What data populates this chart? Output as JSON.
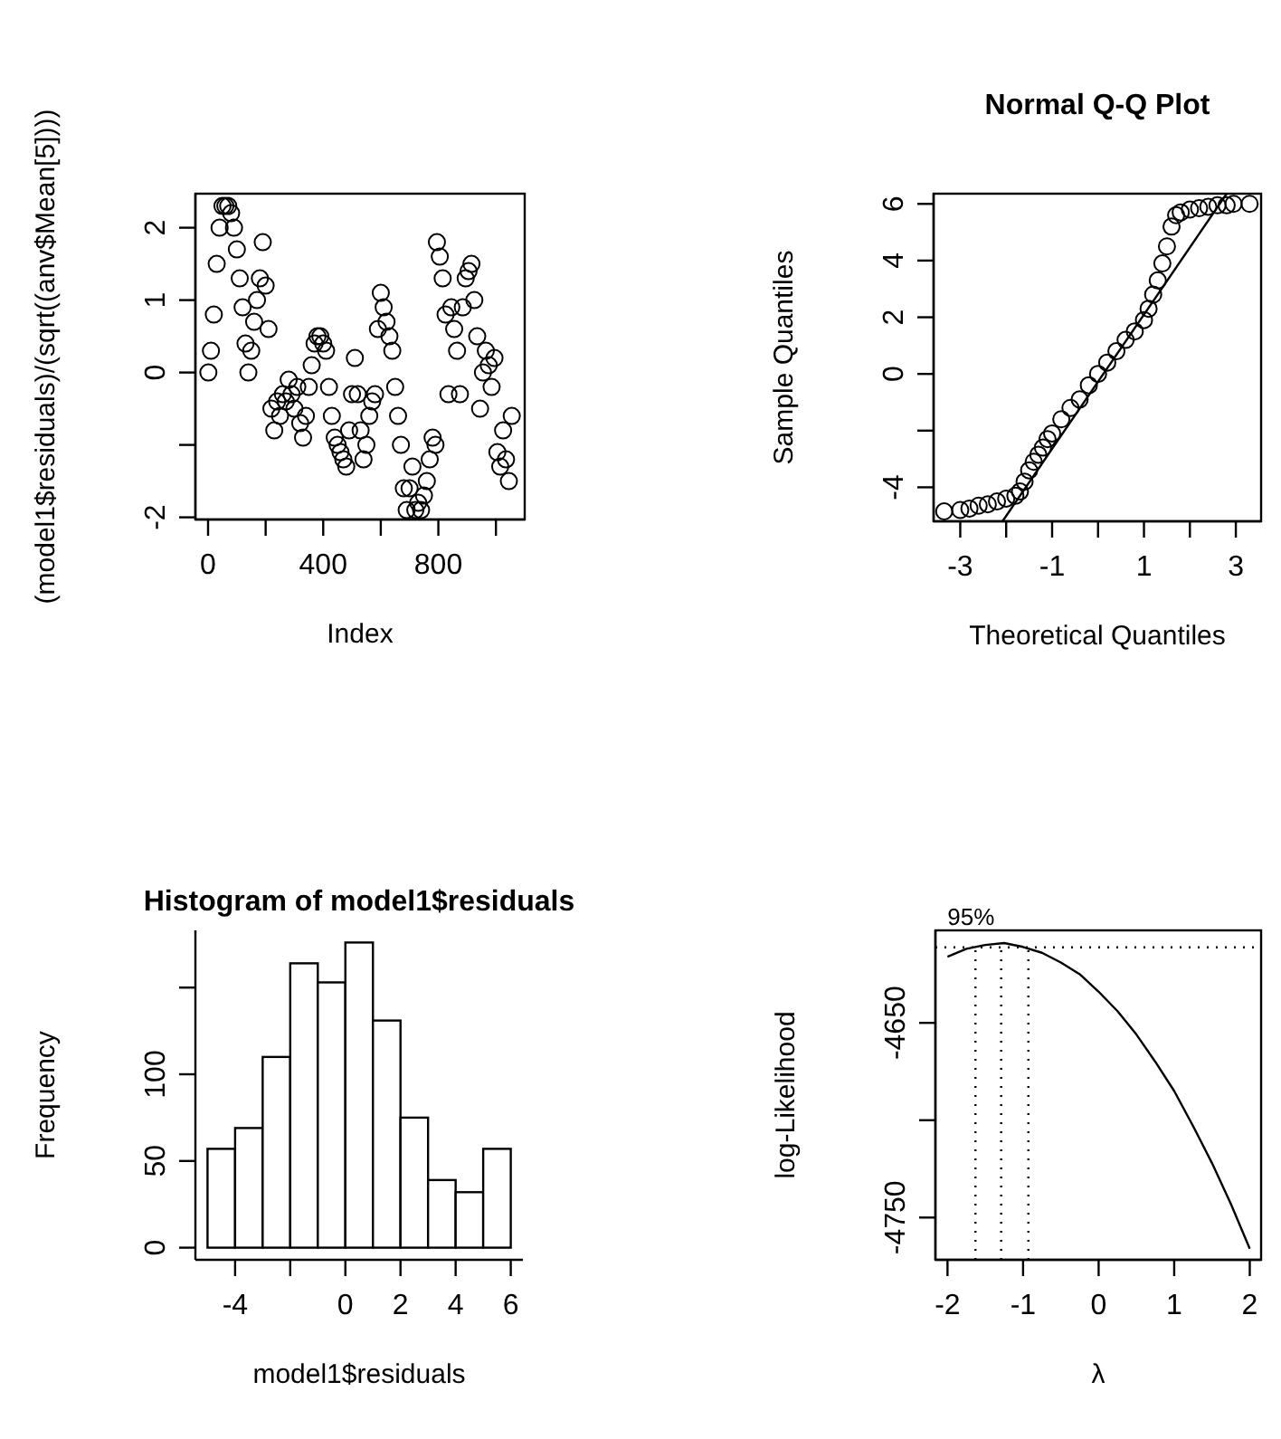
{
  "chart_data": [
    {
      "type": "scatter",
      "xlabel": "Index",
      "ylabel": "(model1$residuals)/(sqrt((anv$Mean[5])))",
      "marker": "circle",
      "xlim": [
        -44,
        1100
      ],
      "xticks": [
        0,
        {
          "value": 200,
          "label": null
        },
        400,
        {
          "value": 600,
          "label": null
        },
        800,
        {
          "value": 1000,
          "label": null
        }
      ],
      "ylim": [
        -2.03,
        2.47
      ],
      "yticks": [
        -2,
        {
          "value": -1,
          "label": null
        },
        0,
        1,
        2
      ],
      "series": [
        {
          "color": "#000000",
          "x": [
            1,
            10,
            20,
            30,
            40,
            50,
            60,
            70,
            80,
            90,
            100,
            110,
            120,
            130,
            140,
            150,
            160,
            170,
            180,
            190,
            200,
            210,
            220,
            230,
            240,
            250,
            260,
            270,
            280,
            290,
            300,
            310,
            320,
            330,
            340,
            350,
            360,
            370,
            380,
            390,
            400,
            410,
            420,
            430,
            440,
            450,
            460,
            470,
            480,
            490,
            500,
            510,
            520,
            530,
            540,
            550,
            560,
            570,
            580,
            590,
            600,
            610,
            620,
            630,
            640,
            650,
            660,
            670,
            680,
            690,
            700,
            710,
            720,
            730,
            740,
            750,
            760,
            770,
            780,
            790,
            795,
            805,
            815,
            825,
            835,
            845,
            855,
            865,
            875,
            885,
            895,
            905,
            915,
            925,
            935,
            945,
            955,
            965,
            975,
            985,
            995,
            1005,
            1015,
            1025,
            1035,
            1045,
            1055
          ],
          "values": [
            0.0,
            0.3,
            0.8,
            1.5,
            2.0,
            2.3,
            2.3,
            2.3,
            2.2,
            2.0,
            1.7,
            1.3,
            0.9,
            0.4,
            0.0,
            0.3,
            0.7,
            1.0,
            1.3,
            1.8,
            1.2,
            0.6,
            -0.5,
            -0.8,
            -0.4,
            -0.6,
            -0.3,
            -0.4,
            -0.1,
            -0.3,
            -0.5,
            -0.2,
            -0.7,
            -0.9,
            -0.6,
            -0.2,
            0.1,
            0.4,
            0.5,
            0.5,
            0.4,
            0.3,
            -0.2,
            -0.6,
            -0.9,
            -1.0,
            -1.1,
            -1.2,
            -1.3,
            -0.8,
            -0.3,
            0.2,
            -0.3,
            -0.8,
            -1.2,
            -1.0,
            -0.6,
            -0.4,
            -0.3,
            0.6,
            1.1,
            0.9,
            0.7,
            0.5,
            0.3,
            -0.2,
            -0.6,
            -1.0,
            -1.6,
            -1.9,
            -1.6,
            -1.3,
            -1.9,
            -1.8,
            -1.9,
            -1.7,
            -1.5,
            -1.2,
            -0.9,
            -1.0,
            1.8,
            1.6,
            1.3,
            0.8,
            -0.3,
            0.9,
            0.6,
            0.3,
            -0.3,
            0.9,
            1.3,
            1.4,
            1.5,
            1.0,
            0.5,
            -0.5,
            0.0,
            0.3,
            0.1,
            -0.2,
            0.2,
            -1.1,
            -1.3,
            -0.8,
            -1.2,
            -1.5,
            -0.6
          ]
        }
      ]
    },
    {
      "type": "scatter",
      "title": "Normal Q-Q Plot",
      "xlabel": "Theoretical Quantiles",
      "ylabel": "Sample Quantiles",
      "marker": "circle",
      "xlim": [
        -3.58,
        3.55
      ],
      "xticks": [
        -3,
        {
          "value": -2,
          "label": null
        },
        -1,
        {
          "value": 0,
          "label": null
        },
        1,
        {
          "value": 2,
          "label": null
        },
        3
      ],
      "ylim": [
        -5.2,
        6.36
      ],
      "yticks": [
        -4,
        {
          "value": -2,
          "label": null
        },
        0,
        2,
        4,
        6
      ],
      "series": [
        {
          "color": "#000000",
          "x": [
            -3.35,
            -3.0,
            -2.8,
            -2.6,
            -2.4,
            -2.2,
            -2.0,
            -1.8,
            -1.7,
            -1.6,
            -1.5,
            -1.4,
            -1.3,
            -1.2,
            -1.1,
            -1.0,
            -0.8,
            -0.6,
            -0.4,
            -0.2,
            0.0,
            0.2,
            0.4,
            0.6,
            0.8,
            1.0,
            1.1,
            1.2,
            1.3,
            1.4,
            1.5,
            1.6,
            1.7,
            1.8,
            2.0,
            2.2,
            2.4,
            2.6,
            2.8,
            2.95,
            3.3
          ],
          "values": [
            -4.85,
            -4.8,
            -4.75,
            -4.65,
            -4.6,
            -4.5,
            -4.4,
            -4.3,
            -4.15,
            -3.8,
            -3.4,
            -3.1,
            -2.85,
            -2.6,
            -2.3,
            -2.1,
            -1.6,
            -1.2,
            -0.9,
            -0.4,
            0.0,
            0.4,
            0.8,
            1.2,
            1.5,
            1.9,
            2.3,
            2.8,
            3.3,
            3.9,
            4.5,
            5.2,
            5.6,
            5.7,
            5.8,
            5.85,
            5.9,
            5.95,
            5.95,
            6.0,
            6.0
          ]
        },
        {
          "type": "line",
          "marker": "none",
          "color": "#000000",
          "x": [
            -2.08,
            2.8
          ],
          "values": [
            -5.2,
            6.36
          ]
        }
      ]
    },
    {
      "type": "histogram",
      "title": "Histogram of model1$residuals",
      "xlabel": "model1$residuals",
      "ylabel": "Frequency",
      "color": "#ffffff",
      "bins": [
        -5,
        -4,
        -3,
        -2,
        -1,
        0,
        1,
        2,
        3,
        4,
        5,
        6
      ],
      "values": [
        57,
        69,
        110,
        164,
        153,
        176,
        131,
        75,
        39,
        32,
        57
      ],
      "xlim": [
        -5.44,
        6.44
      ],
      "xticks": [
        -4,
        {
          "value": -2,
          "label": null
        },
        0,
        2,
        4,
        6
      ],
      "ylim": [
        -7,
        183
      ],
      "yticks": [
        0,
        50,
        100,
        {
          "value": 150,
          "label": null
        }
      ]
    },
    {
      "type": "line",
      "xlabel": "λ",
      "ylabel": "log-Likelihood",
      "color": "#000000",
      "line_style": "solid",
      "x": [
        -2,
        -1.75,
        -1.5,
        -1.25,
        -1,
        -0.75,
        -0.5,
        -0.25,
        0,
        0.25,
        0.5,
        0.75,
        1,
        1.25,
        1.5,
        1.75,
        2
      ],
      "values": [
        -4616,
        -4612,
        -4610,
        -4609,
        -4611,
        -4614,
        -4619,
        -4625,
        -4634,
        -4644,
        -4656,
        -4670,
        -4685,
        -4703,
        -4722,
        -4743,
        -4766
      ],
      "xlim": [
        -2.16,
        2.15
      ],
      "xticks": [
        -2,
        -1,
        0,
        1,
        2
      ],
      "ylim": [
        -4771.7,
        -4602.5
      ],
      "yticks": [
        -4750,
        {
          "value": -4700,
          "label": null
        },
        -4650
      ],
      "annotations": [
        {
          "text": "95%",
          "x": -2,
          "y": -4611.2
        }
      ],
      "ref_lines": [
        {
          "axis": "y",
          "value": -4611.2,
          "line_style": "dotted"
        },
        {
          "axis": "x",
          "value": -1.63,
          "line_style": "dotted"
        },
        {
          "axis": "x",
          "value": -1.29,
          "line_style": "dotted"
        },
        {
          "axis": "x",
          "value": -0.93,
          "line_style": "dotted"
        }
      ]
    }
  ]
}
